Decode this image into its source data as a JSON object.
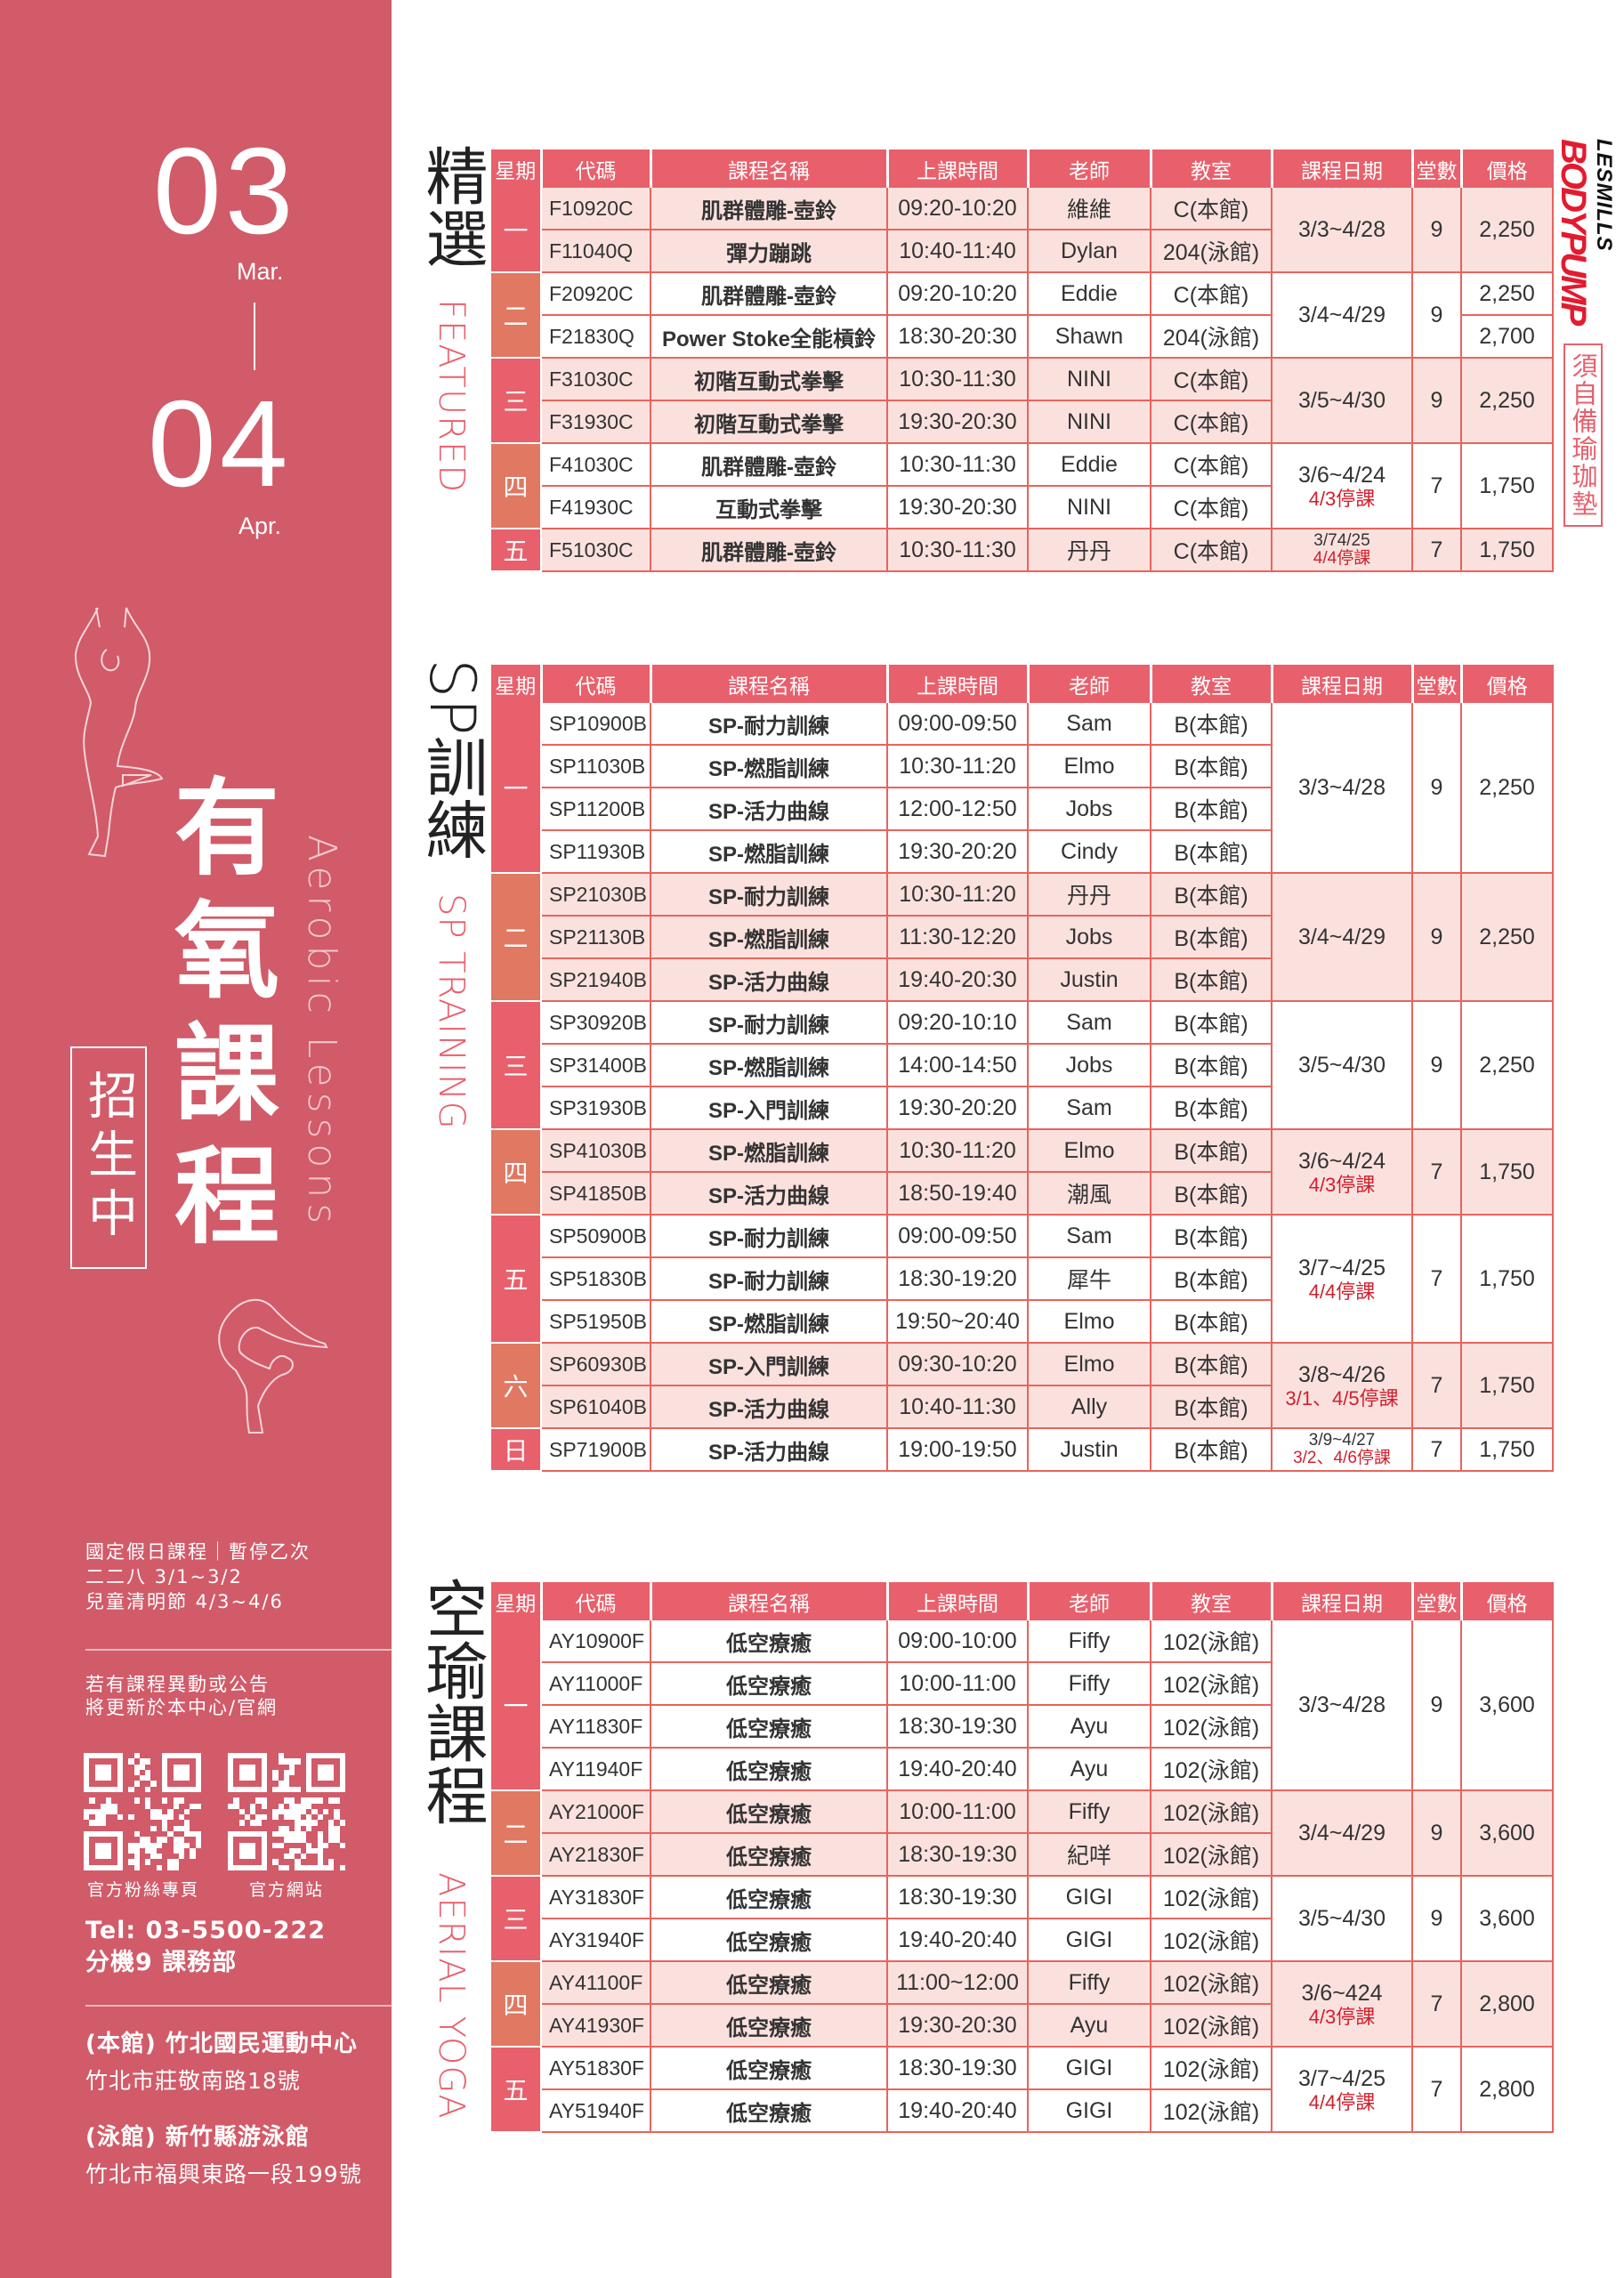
{
  "sidebar": {
    "month_start": "03",
    "month_start_label": "Mar.",
    "month_end": "04",
    "month_end_label": "Apr.",
    "title_chars": [
      "有",
      "氧",
      "課",
      "程"
    ],
    "title_en": "Aerobic Lessons",
    "recruit": "招生中",
    "holiday_lines": [
      "國定假日課程｜暫停乙次",
      "二二八 3/1~3/2",
      "兒童清明節 4/3~4/6"
    ],
    "notice_lines": [
      "若有課程異動或公告",
      "將更新於本中心/官網"
    ],
    "qr_labels": [
      "官方粉絲專頁",
      "官方網站"
    ],
    "tel": "Tel: 03-5500-222",
    "ext": "分機9  課務部",
    "venues": [
      {
        "name": "(本館) 竹北國民運動中心",
        "address": "竹北市莊敬南路18號"
      },
      {
        "name": "(泳館) 新竹縣游泳館",
        "address": "竹北市福興東路一段199號"
      }
    ],
    "colors": {
      "background": "#D15B69"
    }
  },
  "logo": {
    "brand_small": "LESMILLS",
    "brand": "BODYPUMP",
    "note": "須自備瑜珈墊"
  },
  "colors": {
    "header": "#E8606C",
    "day_red": "#E8606C",
    "day_orange": "#E07862",
    "tint": "#FBE1DE",
    "grid": "#E8645C",
    "warning": "#D0202E"
  },
  "sections": [
    {
      "title": "精選",
      "subtitle": "FEATURED",
      "headers": [
        "星期",
        "代碼",
        "課程名稱",
        "上課時間",
        "老師",
        "教室",
        "課程日期",
        "堂數",
        "價格"
      ],
      "groups": [
        {
          "day": "一",
          "highlight": true,
          "date": "3/3~4/28",
          "note": "",
          "count": "9",
          "price": "2,250",
          "rows": [
            [
              "F10920C",
              "肌群體雕-壺鈴",
              "09:20-10:20",
              "維維",
              "C(本館)"
            ],
            [
              "F11040Q",
              "彈力蹦跳",
              "10:40-11:40",
              "Dylan",
              "204(泳館)"
            ]
          ]
        },
        {
          "day": "二",
          "highlight": false,
          "date": "3/4~4/29",
          "note": "",
          "count": "9",
          "prices": [
            "2,250",
            "2,700"
          ],
          "rows": [
            [
              "F20920C",
              "肌群體雕-壺鈴",
              "09:20-10:20",
              "Eddie",
              "C(本館)"
            ],
            [
              "F21830Q",
              "Power Stoke全能槓鈴",
              "18:30-20:30",
              "Shawn",
              "204(泳館)"
            ]
          ]
        },
        {
          "day": "三",
          "highlight": true,
          "date": "3/5~4/30",
          "note": "",
          "count": "9",
          "price": "2,250",
          "rows": [
            [
              "F31030C",
              "初階互動式拳擊",
              "10:30-11:30",
              "NINI",
              "C(本館)"
            ],
            [
              "F31930C",
              "初階互動式拳擊",
              "19:30-20:30",
              "NINI",
              "C(本館)"
            ]
          ]
        },
        {
          "day": "四",
          "highlight": false,
          "date": "3/6~4/24",
          "note": "4/3停課",
          "count": "7",
          "price": "1,750",
          "rows": [
            [
              "F41030C",
              "肌群體雕-壺鈴",
              "10:30-11:30",
              "Eddie",
              "C(本館)"
            ],
            [
              "F41930C",
              "互動式拳擊",
              "19:30-20:30",
              "NINI",
              "C(本館)"
            ]
          ]
        },
        {
          "day": "五",
          "highlight": true,
          "date": "3/74/25",
          "note": "4/4停課",
          "count": "7",
          "price": "1,750",
          "rows": [
            [
              "F51030C",
              "肌群體雕-壺鈴",
              "10:30-11:30",
              "丹丹",
              "C(本館)"
            ]
          ]
        }
      ]
    },
    {
      "title": "SP訓練",
      "subtitle": "SP TRAINING",
      "headers": [
        "星期",
        "代碼",
        "課程名稱",
        "上課時間",
        "老師",
        "教室",
        "課程日期",
        "堂數",
        "價格"
      ],
      "groups": [
        {
          "day": "一",
          "highlight": false,
          "date": "3/3~4/28",
          "note": "",
          "count": "9",
          "price": "2,250",
          "rows": [
            [
              "SP10900B",
              "SP-耐力訓練",
              "09:00-09:50",
              "Sam",
              "B(本館)"
            ],
            [
              "SP11030B",
              "SP-燃脂訓練",
              "10:30-11:20",
              "Elmo",
              "B(本館)"
            ],
            [
              "SP11200B",
              "SP-活力曲線",
              "12:00-12:50",
              "Jobs",
              "B(本館)"
            ],
            [
              "SP11930B",
              "SP-燃脂訓練",
              "19:30-20:20",
              "Cindy",
              "B(本館)"
            ]
          ]
        },
        {
          "day": "二",
          "highlight": true,
          "date": "3/4~4/29",
          "note": "",
          "count": "9",
          "price": "2,250",
          "rows": [
            [
              "SP21030B",
              "SP-耐力訓練",
              "10:30-11:20",
              "丹丹",
              "B(本館)"
            ],
            [
              "SP21130B",
              "SP-燃脂訓練",
              "11:30-12:20",
              "Jobs",
              "B(本館)"
            ],
            [
              "SP21940B",
              "SP-活力曲線",
              "19:40-20:30",
              "Justin",
              "B(本館)"
            ]
          ]
        },
        {
          "day": "三",
          "highlight": false,
          "date": "3/5~4/30",
          "note": "",
          "count": "9",
          "price": "2,250",
          "rows": [
            [
              "SP30920B",
              "SP-耐力訓練",
              "09:20-10:10",
              "Sam",
              "B(本館)"
            ],
            [
              "SP31400B",
              "SP-燃脂訓練",
              "14:00-14:50",
              "Jobs",
              "B(本館)"
            ],
            [
              "SP31930B",
              "SP-入門訓練",
              "19:30-20:20",
              "Sam",
              "B(本館)"
            ]
          ]
        },
        {
          "day": "四",
          "highlight": true,
          "date": "3/6~4/24",
          "note": "4/3停課",
          "count": "7",
          "price": "1,750",
          "rows": [
            [
              "SP41030B",
              "SP-燃脂訓練",
              "10:30-11:20",
              "Elmo",
              "B(本館)"
            ],
            [
              "SP41850B",
              "SP-活力曲線",
              "18:50-19:40",
              "潮風",
              "B(本館)"
            ]
          ]
        },
        {
          "day": "五",
          "highlight": false,
          "date": "3/7~4/25",
          "note": "4/4停課",
          "count": "7",
          "price": "1,750",
          "rows": [
            [
              "SP50900B",
              "SP-耐力訓練",
              "09:00-09:50",
              "Sam",
              "B(本館)"
            ],
            [
              "SP51830B",
              "SP-耐力訓練",
              "18:30-19:20",
              "犀牛",
              "B(本館)"
            ],
            [
              "SP51950B",
              "SP-燃脂訓練",
              "19:50~20:40",
              "Elmo",
              "B(本館)"
            ]
          ]
        },
        {
          "day": "六",
          "highlight": true,
          "date": "3/8~4/26",
          "note": "3/1、4/5停課",
          "count": "7",
          "price": "1,750",
          "rows": [
            [
              "SP60930B",
              "SP-入門訓練",
              "09:30-10:20",
              "Elmo",
              "B(本館)"
            ],
            [
              "SP61040B",
              "SP-活力曲線",
              "10:40-11:30",
              "Ally",
              "B(本館)"
            ]
          ]
        },
        {
          "day": "日",
          "highlight": false,
          "date": "3/9~4/27",
          "note": "3/2、4/6停課",
          "count": "7",
          "price": "1,750",
          "rows": [
            [
              "SP71900B",
              "SP-活力曲線",
              "19:00-19:50",
              "Justin",
              "B(本館)"
            ]
          ]
        }
      ]
    },
    {
      "title": "空瑜課程",
      "subtitle": "AERIAL YOGA",
      "headers": [
        "星期",
        "代碼",
        "課程名稱",
        "上課時間",
        "老師",
        "教室",
        "課程日期",
        "堂數",
        "價格"
      ],
      "groups": [
        {
          "day": "一",
          "highlight": false,
          "date": "3/3~4/28",
          "note": "",
          "count": "9",
          "price": "3,600",
          "rows": [
            [
              "AY10900F",
              "低空療癒",
              "09:00-10:00",
              "Fiffy",
              "102(泳館)"
            ],
            [
              "AY11000F",
              "低空療癒",
              "10:00-11:00",
              "Fiffy",
              "102(泳館)"
            ],
            [
              "AY11830F",
              "低空療癒",
              "18:30-19:30",
              "Ayu",
              "102(泳館)"
            ],
            [
              "AY11940F",
              "低空療癒",
              "19:40-20:40",
              "Ayu",
              "102(泳館)"
            ]
          ]
        },
        {
          "day": "二",
          "highlight": true,
          "date": "3/4~4/29",
          "note": "",
          "count": "9",
          "price": "3,600",
          "rows": [
            [
              "AY21000F",
              "低空療癒",
              "10:00-11:00",
              "Fiffy",
              "102(泳館)"
            ],
            [
              "AY21830F",
              "低空療癒",
              "18:30-19:30",
              "紀咩",
              "102(泳館)"
            ]
          ]
        },
        {
          "day": "三",
          "highlight": false,
          "date": "3/5~4/30",
          "note": "",
          "count": "9",
          "price": "3,600",
          "rows": [
            [
              "AY31830F",
              "低空療癒",
              "18:30-19:30",
              "GIGI",
              "102(泳館)"
            ],
            [
              "AY31940F",
              "低空療癒",
              "19:40-20:40",
              "GIGI",
              "102(泳館)"
            ]
          ]
        },
        {
          "day": "四",
          "highlight": true,
          "date": "3/6~424",
          "note": "4/3停課",
          "count": "7",
          "price": "2,800",
          "rows": [
            [
              "AY41100F",
              "低空療癒",
              "11:00~12:00",
              "Fiffy",
              "102(泳館)"
            ],
            [
              "AY41930F",
              "低空療癒",
              "19:30-20:30",
              "Ayu",
              "102(泳館)"
            ]
          ]
        },
        {
          "day": "五",
          "highlight": false,
          "date": "3/7~4/25",
          "note": "4/4停課",
          "count": "7",
          "price": "2,800",
          "rows": [
            [
              "AY51830F",
              "低空療癒",
              "18:30-19:30",
              "GIGI",
              "102(泳館)"
            ],
            [
              "AY51940F",
              "低空療癒",
              "19:40-20:40",
              "GIGI",
              "102(泳館)"
            ]
          ]
        }
      ]
    }
  ]
}
